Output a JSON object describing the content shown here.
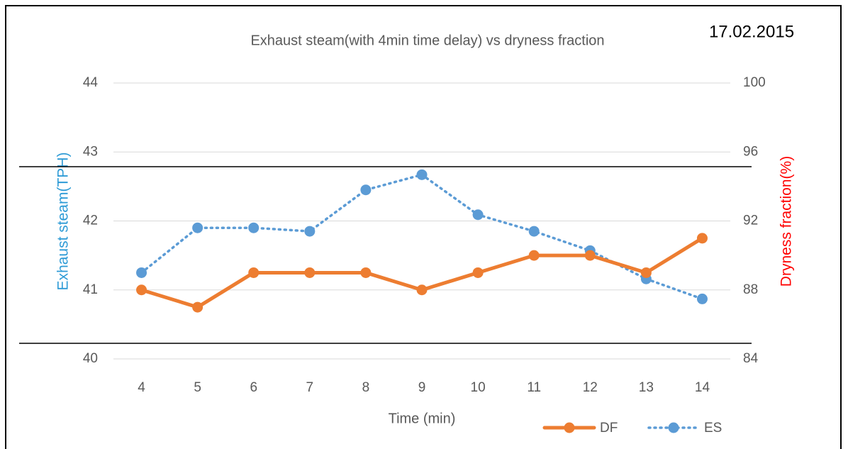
{
  "chart_data": {
    "type": "line",
    "title": "Exhaust steam(with 4min time delay) vs dryness fraction",
    "annotation": "17.02.2015",
    "x_label": "Time (min)",
    "y_label": "Exhaust steam(TPH)",
    "y2_label": "Dryness fraction(%)",
    "categories": [
      "4",
      "5",
      "6",
      "7",
      "8",
      "9",
      "10",
      "11",
      "12",
      "13",
      "14"
    ],
    "ylim": [
      40,
      44
    ],
    "yticks": [
      40,
      41,
      42,
      43,
      44
    ],
    "y2lim": [
      84,
      100
    ],
    "y2ticks": [
      84,
      88,
      92,
      96,
      100
    ],
    "grid": true,
    "series": [
      {
        "name": "DF",
        "color": "#ed7d31",
        "axis": "y2",
        "style": "solid",
        "values": [
          88,
          87,
          89,
          89,
          89,
          88,
          89,
          90,
          90,
          89,
          91
        ]
      },
      {
        "name": "ES",
        "color": "#5b9bd5",
        "style": "dotted",
        "values": [
          41.25,
          41.9,
          41.9,
          41.85,
          42.45,
          42.67,
          42.09,
          41.85,
          41.57,
          41.16,
          40.87
        ]
      }
    ]
  }
}
